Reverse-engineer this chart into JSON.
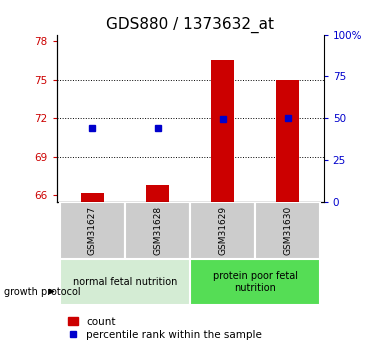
{
  "title": "GDS880 / 1373632_at",
  "samples": [
    "GSM31627",
    "GSM31628",
    "GSM31629",
    "GSM31630"
  ],
  "count_values": [
    66.15,
    66.8,
    76.5,
    75.0
  ],
  "percentile_values": [
    71.2,
    71.2,
    71.9,
    72.0
  ],
  "ylim_left": [
    65.5,
    78.5
  ],
  "ylim_right": [
    0,
    100
  ],
  "yticks_left": [
    66,
    69,
    72,
    75,
    78
  ],
  "ytick_labels_left": [
    "66",
    "69",
    "72",
    "75",
    "78"
  ],
  "yticks_right": [
    0,
    25,
    50,
    75,
    100
  ],
  "ytick_labels_right": [
    "0",
    "25",
    "50",
    "75",
    "100%"
  ],
  "grid_yticks": [
    69,
    72,
    75
  ],
  "groups": [
    {
      "label": "normal fetal nutrition",
      "indices": [
        0,
        1
      ],
      "color": "#d4ecd4"
    },
    {
      "label": "protein poor fetal\nnutrition",
      "indices": [
        2,
        3
      ],
      "color": "#55dd55"
    }
  ],
  "bar_color": "#cc0000",
  "dot_color": "#0000cc",
  "bar_width": 0.35,
  "title_fontsize": 11,
  "tick_fontsize": 7.5,
  "legend_fontsize": 7.5,
  "sample_fontsize": 6.5,
  "group_fontsize": 7
}
